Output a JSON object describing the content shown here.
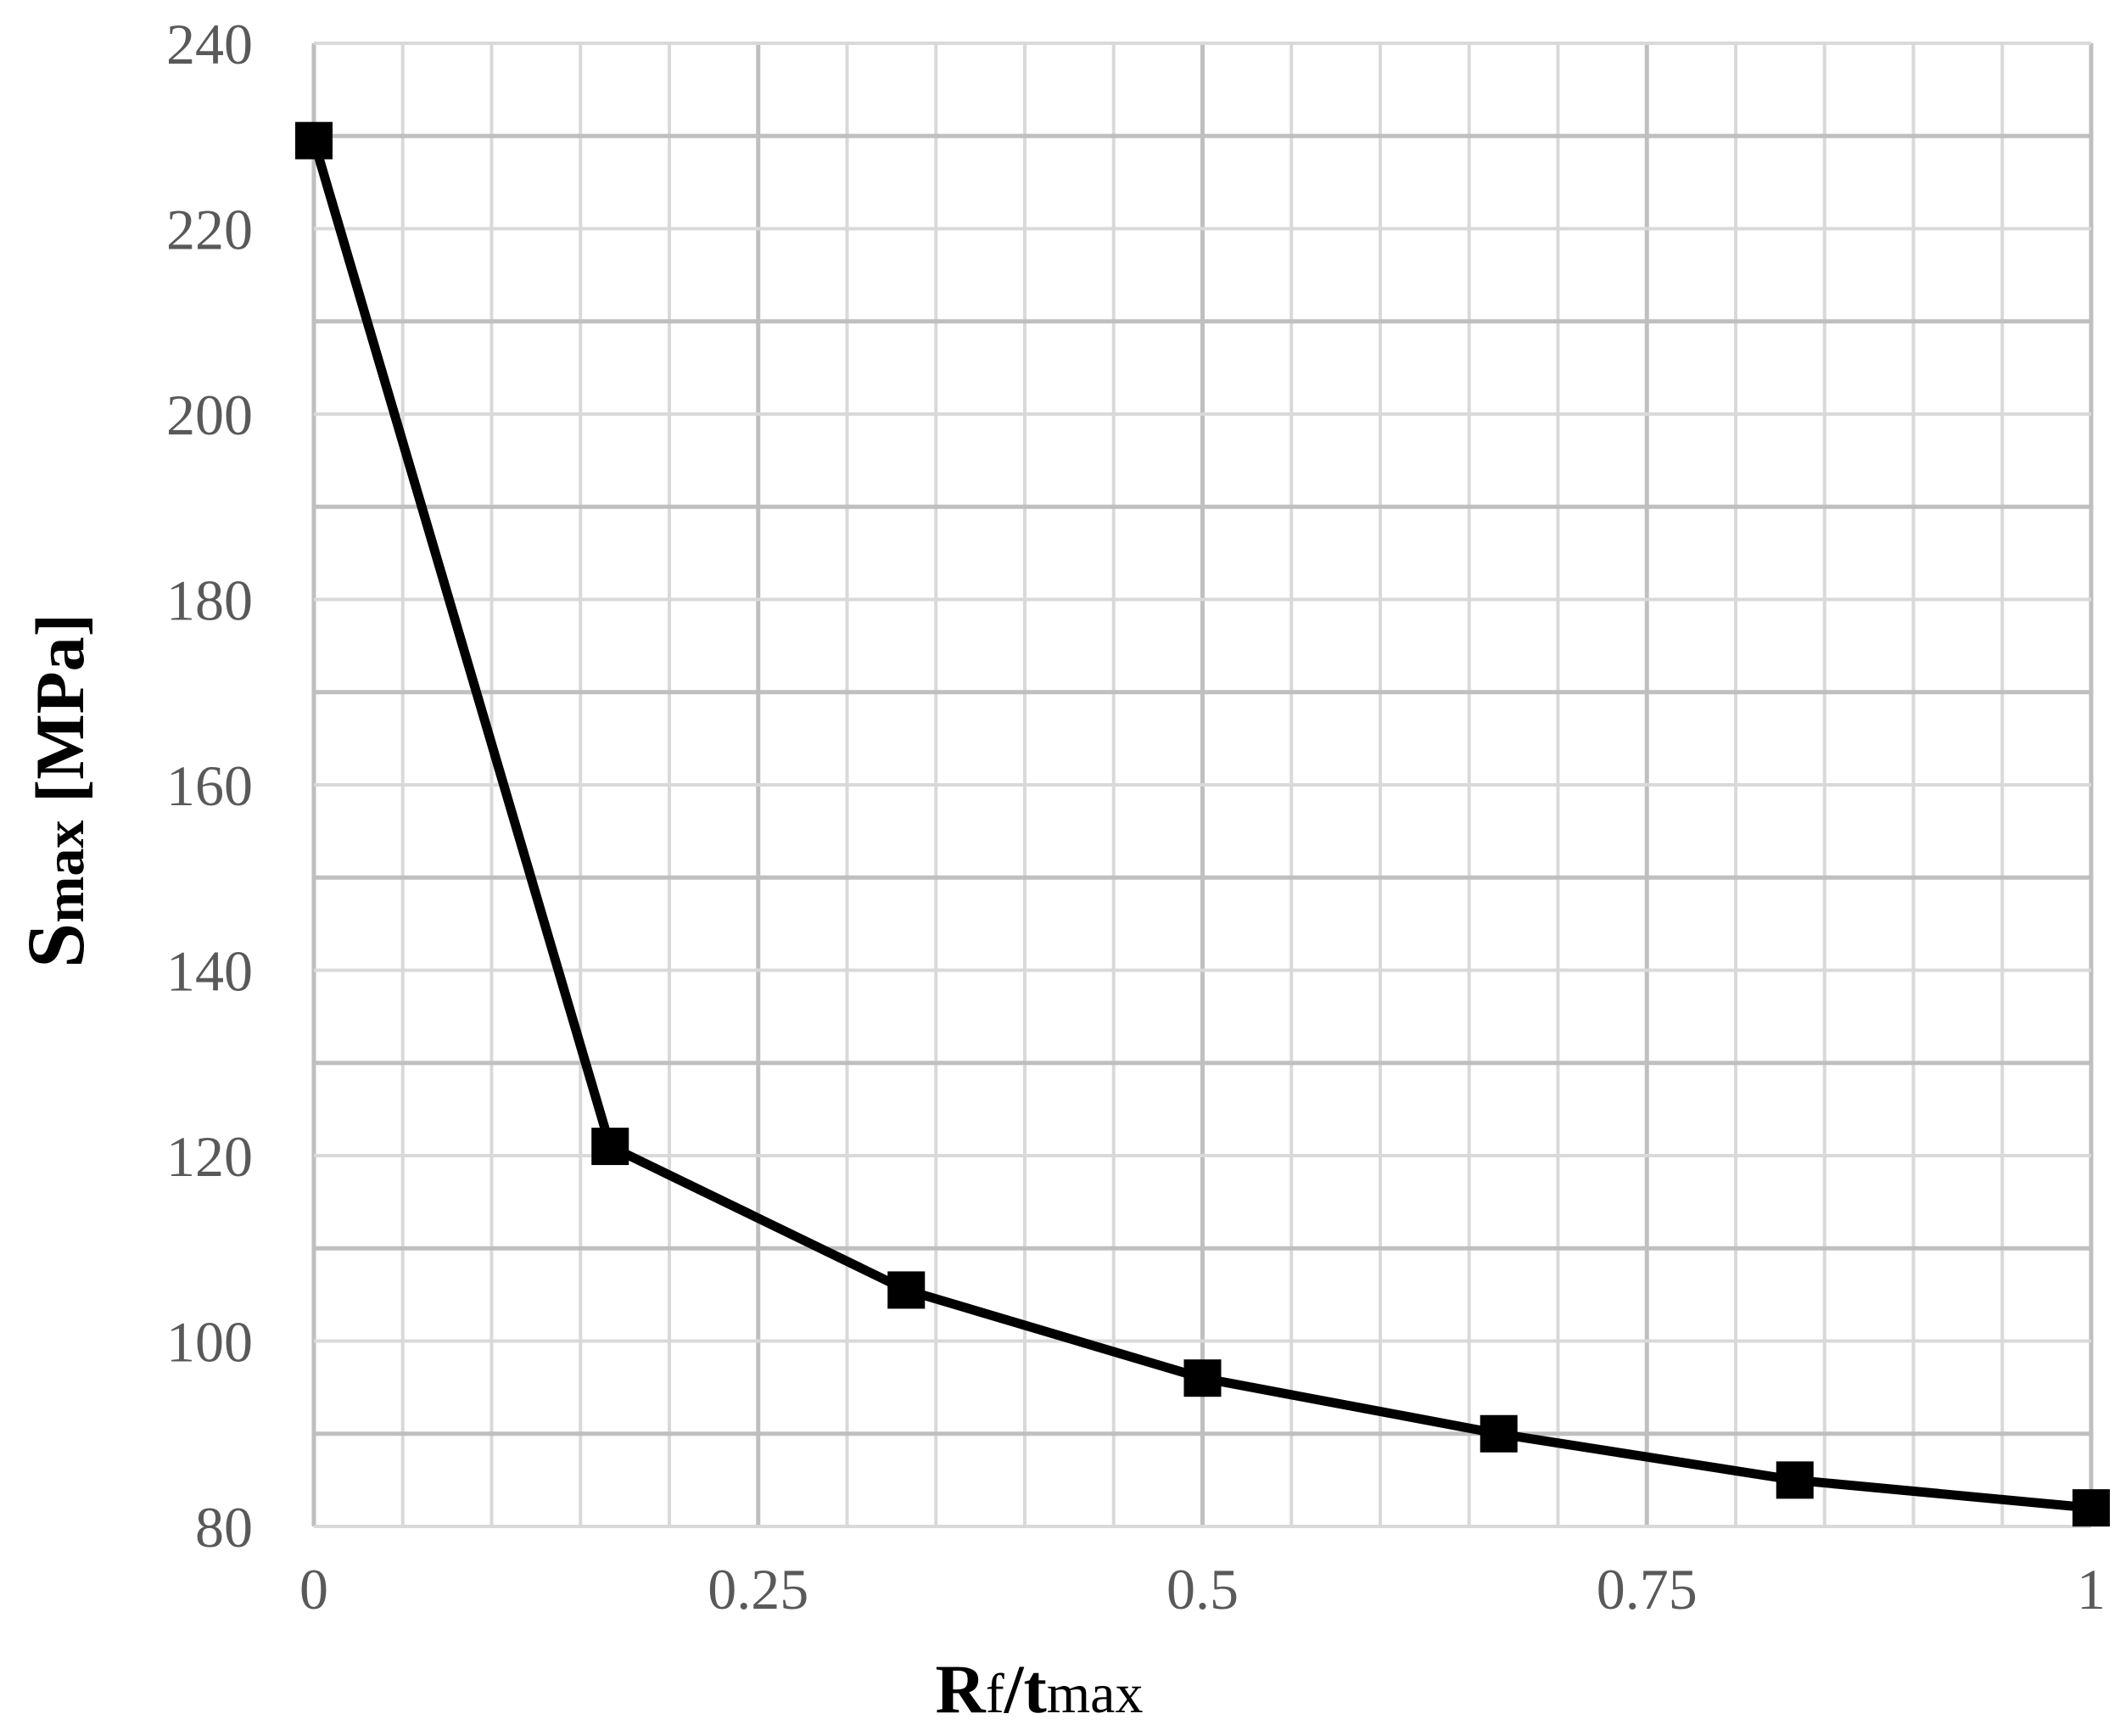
{
  "chart_data": {
    "type": "line",
    "title": "",
    "xlabel": {
      "main": "R",
      "sub1": "f",
      "slash": "/",
      "main2": "t",
      "sub2": "max"
    },
    "ylabel": {
      "main": "S",
      "sub": "max",
      "unit": " [MPa]"
    },
    "xlim": [
      0,
      1
    ],
    "ylim": [
      80,
      240
    ],
    "x_ticks": [
      0,
      0.25,
      0.5,
      0.75,
      1
    ],
    "x_tick_labels": [
      "0",
      "0.25",
      "0.5",
      "0.75",
      "1"
    ],
    "y_ticks": [
      80,
      100,
      120,
      140,
      160,
      180,
      200,
      220,
      240
    ],
    "y_tick_labels": [
      "80",
      "100",
      "120",
      "140",
      "160",
      "180",
      "200",
      "220",
      "240"
    ],
    "grid": true,
    "x_minor_step": 0.05,
    "y_minor_step": 10,
    "marker": "square",
    "colors": {
      "line": "#000000",
      "grid_major": "#bfbfbf",
      "grid_minor": "#d9d9d9",
      "tick_text": "#595959"
    },
    "series": [
      {
        "x": [
          0,
          0.1667,
          0.3333,
          0.5,
          0.6667,
          0.8333,
          1
        ],
        "y": [
          229.5,
          121,
          105.5,
          96,
          90,
          85,
          82
        ]
      }
    ]
  }
}
